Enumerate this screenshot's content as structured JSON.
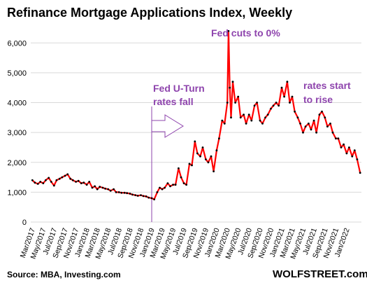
{
  "chart_data": {
    "type": "line",
    "title": "Refinance Mortgage Applications Index, Weekly",
    "ylim": [
      0,
      6500
    ],
    "y_ticks": [
      "0",
      "1,000",
      "2,000",
      "3,000",
      "4,000",
      "5,000",
      "6,000"
    ],
    "y_tick_values": [
      0,
      1000,
      2000,
      3000,
      4000,
      5000,
      6000
    ],
    "x_range": [
      "2017-02-20",
      "2022-03-25"
    ],
    "x_ticks": [
      "Mar/2017",
      "May/2017",
      "Jul/2017",
      "Sep/2017",
      "Nov/2017",
      "Jan/2018",
      "Mar/2018",
      "May/2018",
      "Jul/2018",
      "Sep/2018",
      "Nov/2018",
      "Jan/2019",
      "Mar/2019",
      "May/2019",
      "Jul/2019",
      "Sep/2019",
      "Nov/2019",
      "Jan/2020",
      "Mar/2020",
      "May/2020",
      "Jul/2020",
      "Sep/2020",
      "Nov/2020",
      "Jan/2021",
      "Mar/2021",
      "May/2021",
      "Jul/2021",
      "Sep/2021",
      "Nov/2021",
      "Jan/2022"
    ],
    "grid": true,
    "line_color": "#ff0000",
    "marker_color": "#000000",
    "annotation_color": "#8e44ad",
    "series": [
      {
        "points": [
          [
            "2017-03-01",
            1400
          ],
          [
            "2017-03-15",
            1320
          ],
          [
            "2017-04-01",
            1280
          ],
          [
            "2017-04-15",
            1350
          ],
          [
            "2017-05-01",
            1300
          ],
          [
            "2017-05-15",
            1400
          ],
          [
            "2017-06-01",
            1480
          ],
          [
            "2017-06-15",
            1350
          ],
          [
            "2017-07-01",
            1220
          ],
          [
            "2017-07-15",
            1400
          ],
          [
            "2017-08-01",
            1450
          ],
          [
            "2017-08-15",
            1500
          ],
          [
            "2017-09-01",
            1550
          ],
          [
            "2017-09-15",
            1600
          ],
          [
            "2017-10-01",
            1450
          ],
          [
            "2017-10-15",
            1400
          ],
          [
            "2017-11-01",
            1350
          ],
          [
            "2017-11-15",
            1380
          ],
          [
            "2017-12-01",
            1300
          ],
          [
            "2017-12-15",
            1320
          ],
          [
            "2018-01-01",
            1250
          ],
          [
            "2018-01-15",
            1350
          ],
          [
            "2018-02-01",
            1150
          ],
          [
            "2018-02-15",
            1200
          ],
          [
            "2018-03-01",
            1100
          ],
          [
            "2018-03-15",
            1180
          ],
          [
            "2018-04-01",
            1150
          ],
          [
            "2018-04-15",
            1120
          ],
          [
            "2018-05-01",
            1100
          ],
          [
            "2018-05-15",
            1050
          ],
          [
            "2018-06-01",
            1100
          ],
          [
            "2018-06-15",
            1000
          ],
          [
            "2018-07-01",
            1000
          ],
          [
            "2018-07-15",
            980
          ],
          [
            "2018-08-01",
            980
          ],
          [
            "2018-08-15",
            970
          ],
          [
            "2018-09-01",
            950
          ],
          [
            "2018-09-15",
            920
          ],
          [
            "2018-10-01",
            900
          ],
          [
            "2018-10-15",
            880
          ],
          [
            "2018-11-01",
            900
          ],
          [
            "2018-11-15",
            870
          ],
          [
            "2018-12-01",
            860
          ],
          [
            "2018-12-15",
            820
          ],
          [
            "2019-01-01",
            800
          ],
          [
            "2019-01-15",
            760
          ],
          [
            "2019-02-01",
            1000
          ],
          [
            "2019-02-15",
            1150
          ],
          [
            "2019-03-01",
            1100
          ],
          [
            "2019-03-15",
            1150
          ],
          [
            "2019-04-01",
            1300
          ],
          [
            "2019-04-15",
            1200
          ],
          [
            "2019-05-01",
            1250
          ],
          [
            "2019-05-15",
            1250
          ],
          [
            "2019-06-01",
            1800
          ],
          [
            "2019-06-15",
            1500
          ],
          [
            "2019-07-01",
            1300
          ],
          [
            "2019-07-15",
            1250
          ],
          [
            "2019-08-01",
            1950
          ],
          [
            "2019-08-15",
            1900
          ],
          [
            "2019-09-01",
            2700
          ],
          [
            "2019-09-15",
            2300
          ],
          [
            "2019-10-01",
            2200
          ],
          [
            "2019-10-15",
            2500
          ],
          [
            "2019-11-01",
            2100
          ],
          [
            "2019-11-15",
            2000
          ],
          [
            "2019-12-01",
            2200
          ],
          [
            "2019-12-15",
            1700
          ],
          [
            "2020-01-01",
            2400
          ],
          [
            "2020-01-15",
            2800
          ],
          [
            "2020-02-01",
            3400
          ],
          [
            "2020-02-15",
            3300
          ],
          [
            "2020-03-01",
            4000
          ],
          [
            "2020-03-08",
            6400
          ],
          [
            "2020-03-15",
            4500
          ],
          [
            "2020-03-22",
            3500
          ],
          [
            "2020-04-01",
            4700
          ],
          [
            "2020-04-15",
            4000
          ],
          [
            "2020-05-01",
            4200
          ],
          [
            "2020-05-15",
            3500
          ],
          [
            "2020-06-01",
            3600
          ],
          [
            "2020-06-15",
            3300
          ],
          [
            "2020-07-01",
            3600
          ],
          [
            "2020-07-15",
            3400
          ],
          [
            "2020-08-01",
            3900
          ],
          [
            "2020-08-15",
            4000
          ],
          [
            "2020-09-01",
            3400
          ],
          [
            "2020-09-15",
            3300
          ],
          [
            "2020-10-01",
            3500
          ],
          [
            "2020-10-15",
            3600
          ],
          [
            "2020-11-01",
            3800
          ],
          [
            "2020-11-15",
            3900
          ],
          [
            "2020-12-01",
            4000
          ],
          [
            "2020-12-15",
            3900
          ],
          [
            "2021-01-01",
            4500
          ],
          [
            "2021-01-15",
            4200
          ],
          [
            "2021-02-01",
            4700
          ],
          [
            "2021-02-15",
            4000
          ],
          [
            "2021-03-01",
            4200
          ],
          [
            "2021-03-15",
            3700
          ],
          [
            "2021-04-01",
            3500
          ],
          [
            "2021-04-15",
            3300
          ],
          [
            "2021-05-01",
            3000
          ],
          [
            "2021-05-15",
            3200
          ],
          [
            "2021-06-01",
            3300
          ],
          [
            "2021-06-15",
            3100
          ],
          [
            "2021-07-01",
            3400
          ],
          [
            "2021-07-15",
            3000
          ],
          [
            "2021-08-01",
            3600
          ],
          [
            "2021-08-15",
            3700
          ],
          [
            "2021-09-01",
            3500
          ],
          [
            "2021-09-15",
            3200
          ],
          [
            "2021-10-01",
            3300
          ],
          [
            "2021-10-15",
            3000
          ],
          [
            "2021-11-01",
            2800
          ],
          [
            "2021-11-15",
            2800
          ],
          [
            "2021-12-01",
            2500
          ],
          [
            "2021-12-15",
            2600
          ],
          [
            "2022-01-01",
            2300
          ],
          [
            "2022-01-15",
            2500
          ],
          [
            "2022-02-01",
            2200
          ],
          [
            "2022-02-15",
            2400
          ],
          [
            "2022-03-01",
            2100
          ],
          [
            "2022-03-18",
            1650
          ]
        ]
      }
    ],
    "annotations": [
      {
        "text": "Fed cuts to 0%"
      },
      {
        "text": "Fed U-Turn"
      },
      {
        "text": "rates fall"
      },
      {
        "text": "rates start"
      },
      {
        "text": "to rise"
      }
    ],
    "marker_date": "2019-01-01"
  },
  "footer": {
    "source": "Source: MBA, Investing.com",
    "brand": "WOLFSTREET.com"
  }
}
